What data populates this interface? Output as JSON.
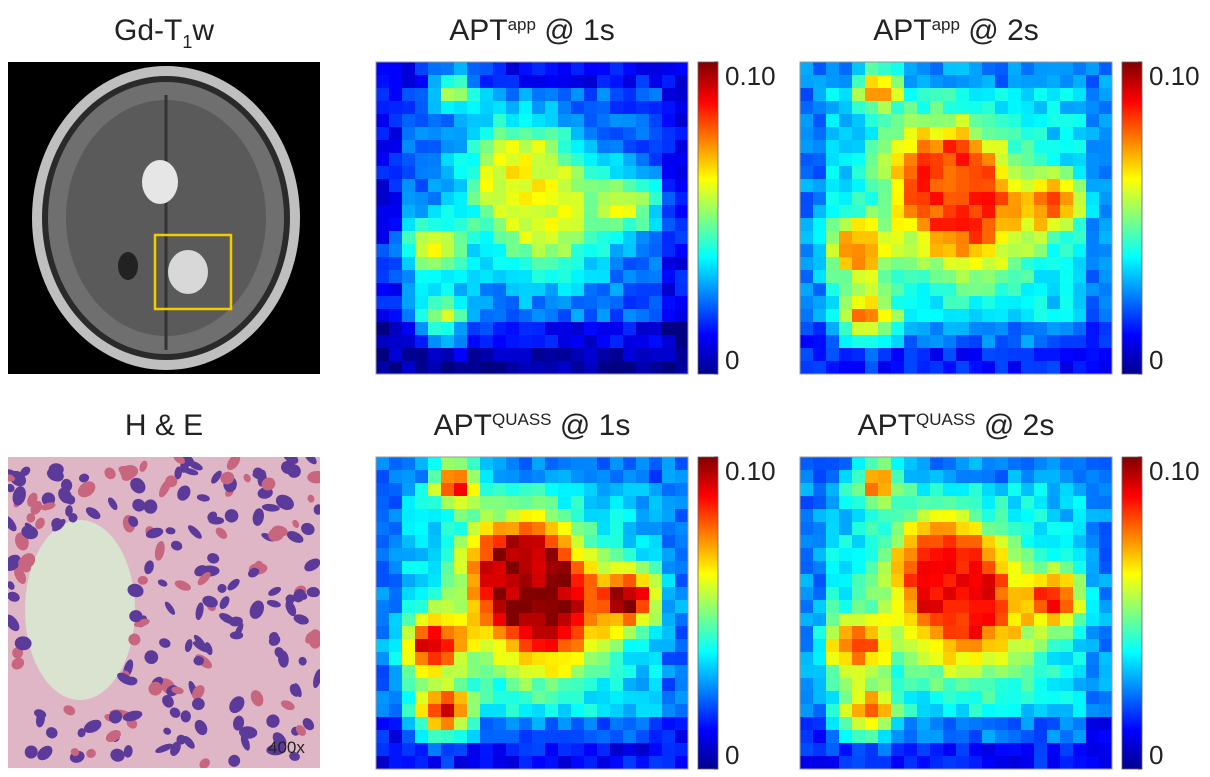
{
  "panels": [
    {
      "title": {
        "main": "Gd-T",
        "sub": "1",
        "rest": "w"
      }
    },
    {
      "title": {
        "main": "APT",
        "sup": "app",
        "rest": " @ 1s"
      },
      "clim": [
        0,
        0.1
      ],
      "ticks": [
        {
          "value": 0.1,
          "label": "0.10"
        },
        0
      ]
    },
    {
      "title": {
        "main": "APT",
        "sup": "app",
        "rest": " @ 2s"
      },
      "clim": [
        0,
        0.1
      ],
      "ticks": [
        {
          "value": 0.1,
          "label": "0.10"
        },
        0
      ]
    },
    {
      "title": {
        "main": "H & E"
      },
      "annotation": "400x"
    },
    {
      "title": {
        "main": "APT",
        "sup": "QUASS",
        "rest": " @ 1s"
      },
      "clim": [
        0,
        0.1
      ],
      "ticks": [
        {
          "value": 0.1,
          "label": "0.10"
        },
        0
      ]
    },
    {
      "title": {
        "main": "APT",
        "sup": "QUASS",
        "rest": " @ 2s"
      },
      "clim": [
        0,
        0.1
      ],
      "ticks": [
        {
          "value": 0.1,
          "label": "0.10"
        },
        0
      ]
    }
  ]
}
